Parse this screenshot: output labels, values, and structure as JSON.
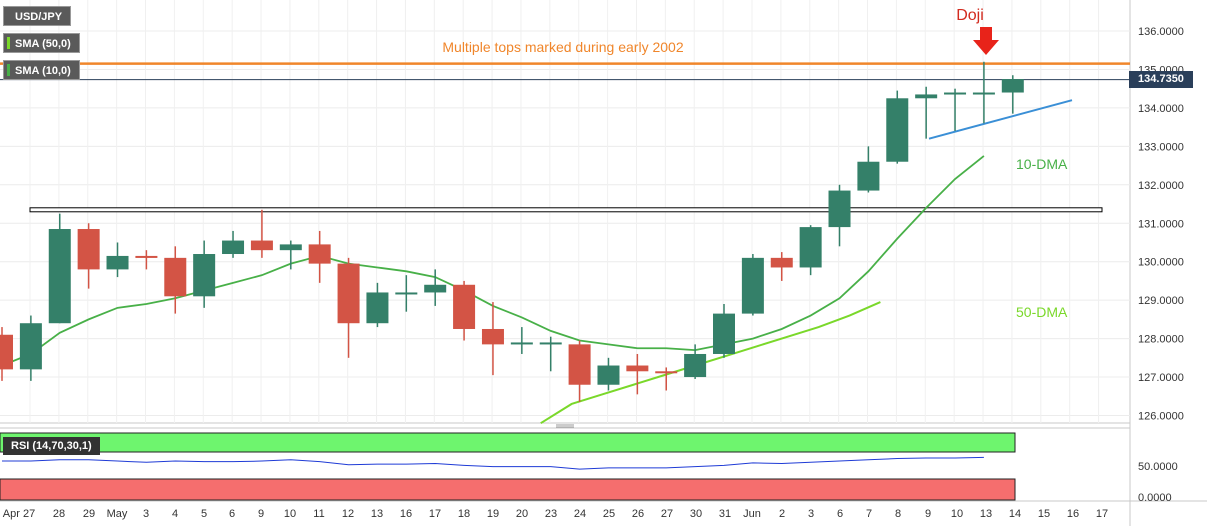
{
  "legend": {
    "symbol": "USD/JPY",
    "sma50": "SMA (50,0)",
    "sma10": "SMA (10,0)",
    "rsi": "RSI (14,70,30,1)"
  },
  "current_price": "134.7350",
  "chart_data": {
    "type": "candlestick",
    "y_range": [
      125.8,
      136.3
    ],
    "y_ticks": [
      "136.0000",
      "135.0000",
      "134.0000",
      "133.0000",
      "132.0000",
      "131.0000",
      "130.0000",
      "129.0000",
      "128.0000",
      "127.0000",
      "126.0000"
    ],
    "x_labels": [
      "Apr 27",
      "28",
      "29",
      "May",
      "3",
      "4",
      "5",
      "6",
      "9",
      "10",
      "11",
      "12",
      "13",
      "16",
      "17",
      "18",
      "19",
      "20",
      "23",
      "24",
      "25",
      "26",
      "27",
      "30",
      "31",
      "Jun",
      "2",
      "3",
      "6",
      "7",
      "8",
      "9",
      "10",
      "13",
      "14",
      "15",
      "16",
      "17"
    ],
    "candles": [
      {
        "date": "Apr 26",
        "o": 128.1,
        "h": 128.3,
        "l": 126.9,
        "c": 127.2
      },
      {
        "date": "Apr 27",
        "o": 127.2,
        "h": 128.6,
        "l": 126.9,
        "c": 128.4
      },
      {
        "date": "Apr 28",
        "o": 128.4,
        "h": 131.25,
        "l": 128.4,
        "c": 130.85
      },
      {
        "date": "Apr 29",
        "o": 130.85,
        "h": 131.0,
        "l": 129.3,
        "c": 129.8
      },
      {
        "date": "May 2",
        "o": 129.8,
        "h": 130.5,
        "l": 129.6,
        "c": 130.15
      },
      {
        "date": "May 3",
        "o": 130.15,
        "h": 130.3,
        "l": 129.8,
        "c": 130.1
      },
      {
        "date": "May 4",
        "o": 130.1,
        "h": 130.4,
        "l": 128.65,
        "c": 129.1
      },
      {
        "date": "May 5",
        "o": 129.1,
        "h": 130.55,
        "l": 128.8,
        "c": 130.2
      },
      {
        "date": "May 6",
        "o": 130.2,
        "h": 130.8,
        "l": 130.1,
        "c": 130.55
      },
      {
        "date": "May 9",
        "o": 130.55,
        "h": 131.35,
        "l": 130.1,
        "c": 130.3
      },
      {
        "date": "May 10",
        "o": 130.3,
        "h": 130.55,
        "l": 129.8,
        "c": 130.45
      },
      {
        "date": "May 11",
        "o": 130.45,
        "h": 130.8,
        "l": 129.45,
        "c": 129.95
      },
      {
        "date": "May 12",
        "o": 129.95,
        "h": 130.1,
        "l": 127.5,
        "c": 128.4
      },
      {
        "date": "May 13",
        "o": 128.4,
        "h": 129.45,
        "l": 128.3,
        "c": 129.2
      },
      {
        "date": "May 16",
        "o": 129.2,
        "h": 129.65,
        "l": 128.7,
        "c": 129.2
      },
      {
        "date": "May 17",
        "o": 129.2,
        "h": 129.8,
        "l": 128.85,
        "c": 129.4
      },
      {
        "date": "May 18",
        "o": 129.4,
        "h": 129.5,
        "l": 127.95,
        "c": 128.25
      },
      {
        "date": "May 19",
        "o": 128.25,
        "h": 128.95,
        "l": 127.05,
        "c": 127.85
      },
      {
        "date": "May 20",
        "o": 127.85,
        "h": 128.3,
        "l": 127.6,
        "c": 127.9
      },
      {
        "date": "May 23",
        "o": 127.9,
        "h": 128.05,
        "l": 127.15,
        "c": 127.9
      },
      {
        "date": "May 24",
        "o": 127.85,
        "h": 127.95,
        "l": 126.35,
        "c": 126.8
      },
      {
        "date": "May 25",
        "o": 126.8,
        "h": 127.5,
        "l": 126.65,
        "c": 127.3
      },
      {
        "date": "May 26",
        "o": 127.3,
        "h": 127.6,
        "l": 126.55,
        "c": 127.15
      },
      {
        "date": "May 27",
        "o": 127.15,
        "h": 127.25,
        "l": 126.65,
        "c": 127.1
      },
      {
        "date": "May 30",
        "o": 127.0,
        "h": 127.85,
        "l": 126.95,
        "c": 127.6
      },
      {
        "date": "May 31",
        "o": 127.6,
        "h": 128.9,
        "l": 127.5,
        "c": 128.65
      },
      {
        "date": "Jun 1",
        "o": 128.65,
        "h": 130.2,
        "l": 128.6,
        "c": 130.1
      },
      {
        "date": "Jun 2",
        "o": 130.1,
        "h": 130.25,
        "l": 129.5,
        "c": 129.85
      },
      {
        "date": "Jun 3",
        "o": 129.85,
        "h": 130.95,
        "l": 129.65,
        "c": 130.9
      },
      {
        "date": "Jun 6",
        "o": 130.9,
        "h": 132.0,
        "l": 130.4,
        "c": 131.85
      },
      {
        "date": "Jun 7",
        "o": 131.85,
        "h": 133.0,
        "l": 131.8,
        "c": 132.6
      },
      {
        "date": "Jun 8",
        "o": 132.6,
        "h": 134.45,
        "l": 132.55,
        "c": 134.25
      },
      {
        "date": "Jun 9",
        "o": 134.25,
        "h": 134.55,
        "l": 133.2,
        "c": 134.35
      },
      {
        "date": "Jun 10",
        "o": 134.35,
        "h": 134.5,
        "l": 133.4,
        "c": 134.4
      },
      {
        "date": "Jun 13",
        "o": 134.4,
        "h": 135.2,
        "l": 133.6,
        "c": 134.4
      },
      {
        "date": "Jun 14",
        "o": 134.4,
        "h": 134.85,
        "l": 133.85,
        "c": 134.75
      }
    ],
    "sma10": [
      127.3,
      127.6,
      128.15,
      128.5,
      128.8,
      128.9,
      129.05,
      129.25,
      129.45,
      129.65,
      129.95,
      130.15,
      129.95,
      129.85,
      129.75,
      129.6,
      129.25,
      128.85,
      128.55,
      128.2,
      127.95,
      127.85,
      127.75,
      127.75,
      127.7,
      127.85,
      128.0,
      128.25,
      128.6,
      129.05,
      129.75,
      130.6,
      131.4,
      132.15,
      132.75
    ],
    "sma50_segment": {
      "start_index": 19,
      "values": [
        125.8,
        126.3,
        126.55,
        126.8,
        127.05,
        127.3,
        127.55,
        127.8,
        128.05,
        128.3,
        128.6,
        128.95
      ]
    },
    "horizontal_levels": [
      {
        "label": "Multiple tops marked during early 2002",
        "value": 135.15,
        "color": "#f0862b"
      },
      {
        "label": "",
        "value": 131.35,
        "color": "#000000"
      },
      {
        "label": "",
        "value": 134.735,
        "color": "#2a3f5a"
      }
    ],
    "trendline": {
      "from": {
        "date": "Jun 9",
        "value": 133.2
      },
      "to": {
        "date": "Jun 16",
        "value": 134.2
      },
      "color": "#3a8fd6"
    },
    "annotations": {
      "doji": "Doji",
      "dma10": "10-DMA",
      "dma50": "50-DMA",
      "tops": "Multiple tops marked during early 2002"
    },
    "rsi": {
      "range": [
        0,
        100
      ],
      "ticks": [
        "50.0000",
        "0.0000"
      ],
      "values": [
        58,
        58,
        60,
        60,
        58,
        56,
        58,
        57,
        57,
        58,
        60,
        57,
        52,
        53,
        53,
        54,
        51,
        49,
        49,
        49,
        45,
        47,
        47,
        47,
        49,
        51,
        55,
        54,
        56,
        58,
        60,
        62,
        63,
        63,
        64
      ]
    },
    "colors": {
      "bull": "#348069",
      "bear": "#d35445",
      "sma10": "#48b048",
      "sma50": "#7ad82a",
      "rsi_line": "#1f3bd6",
      "overbought": "#6ef56e",
      "oversold": "#f56e6e"
    }
  }
}
